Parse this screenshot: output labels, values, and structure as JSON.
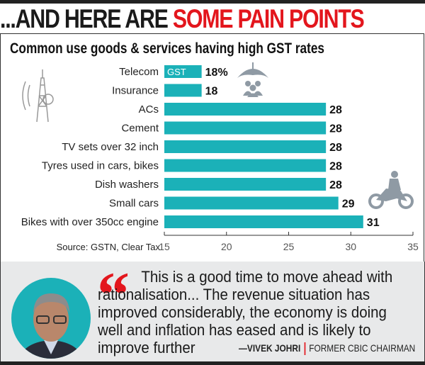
{
  "headline": {
    "part1": "...AND HERE ARE ",
    "part2": "SOME PAIN POINTS"
  },
  "chart_data": {
    "type": "bar",
    "orientation": "horizontal",
    "title": "Common use goods & services having high GST rates",
    "categories": [
      "Telecom",
      "Insurance",
      "ACs",
      "Cement",
      "TV sets over 32 inch",
      "Tyres used in cars, bikes",
      "Dish washers",
      "Small cars",
      "Bikes with over 350cc engine"
    ],
    "values": [
      18,
      18,
      28,
      28,
      28,
      28,
      28,
      29,
      31
    ],
    "value_labels": [
      "18%",
      "18",
      "28",
      "28",
      "28",
      "28",
      "28",
      "29",
      "31"
    ],
    "bar_inner_label": "GST",
    "xlim": [
      15,
      35
    ],
    "xticks": [
      "15",
      "20",
      "25",
      "30",
      "35"
    ],
    "source": "Source: GSTN, Clear Tax",
    "bar_color": "#1bb1b8",
    "grid": false,
    "icons": [
      "telecom-tower-icon",
      "umbrella-family-icon",
      "motorbike-icon"
    ]
  },
  "quote": {
    "text_first": "This is a good time to move ahead with rationalisation... The revenue situation has improved considerably, the economy is doing well and inflation has eased and is likely to improve further",
    "author": "—VIVEK JOHRI",
    "role": "FORMER CBIC CHAIRMAN",
    "accent": "#e3161d"
  }
}
